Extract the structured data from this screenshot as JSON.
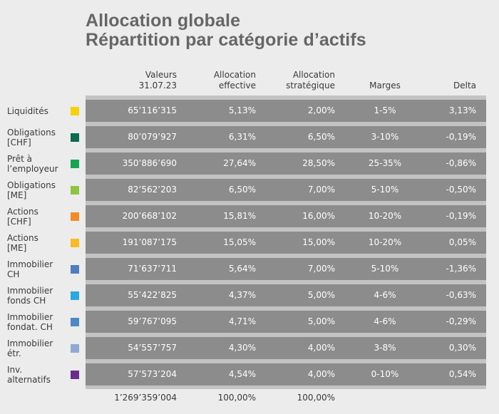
{
  "title": {
    "line1": "Allocation globale",
    "line2": "Répartition par catégorie d’actifs"
  },
  "headers": {
    "valeurs": [
      "Valeurs",
      "31.07.23"
    ],
    "effective": [
      "Allocation",
      "effective"
    ],
    "strategique": [
      "Allocation",
      "stratégique"
    ],
    "marges": "Marges",
    "delta": "Delta"
  },
  "rows": [
    {
      "label": [
        "Liquidités"
      ],
      "color": "#f5d20a",
      "valeur": "65’116’315",
      "effective": "5,13%",
      "strategique": "2,00%",
      "marges": "1-5%",
      "delta": "3,13%"
    },
    {
      "label": [
        "Obligations",
        "[CHF]"
      ],
      "color": "#0d6b4f",
      "valeur": "80’079’927",
      "effective": "6,31%",
      "strategique": "6,50%",
      "marges": "3-10%",
      "delta": "-0,19%"
    },
    {
      "label": [
        "Prêt à",
        "l’employeur"
      ],
      "color": "#14a550",
      "valeur": "350’886’690",
      "effective": "27,64%",
      "strategique": "28,50%",
      "marges": "25-35%",
      "delta": "-0,86%"
    },
    {
      "label": [
        "Obligations",
        "[ME]"
      ],
      "color": "#8cc63f",
      "valeur": "82’562’203",
      "effective": "6,50%",
      "strategique": "7,00%",
      "marges": "5-10%",
      "delta": "-0,50%"
    },
    {
      "label": [
        "Actions",
        "[CHF]"
      ],
      "color": "#f28c28",
      "valeur": "200’668’102",
      "effective": "15,81%",
      "strategique": "16,00%",
      "marges": "10-20%",
      "delta": "-0,19%"
    },
    {
      "label": [
        "Actions",
        "[ME]"
      ],
      "color": "#fbb924",
      "valeur": "191’087’175",
      "effective": "15,05%",
      "strategique": "15,00%",
      "marges": "10-20%",
      "delta": "0,05%"
    },
    {
      "label": [
        "Immobilier",
        "CH"
      ],
      "color": "#4f7dbf",
      "valeur": "71’637’711",
      "effective": "5,64%",
      "strategique": "7,00%",
      "marges": "5-10%",
      "delta": "-1,36%"
    },
    {
      "label": [
        "Immobilier",
        "fonds CH"
      ],
      "color": "#29a9e0",
      "valeur": "55’422’825",
      "effective": "4,37%",
      "strategique": "5,00%",
      "marges": "4-6%",
      "delta": "-0,63%"
    },
    {
      "label": [
        "Immobilier",
        "fondat. CH"
      ],
      "color": "#4a8ac6",
      "valeur": "59’767’095",
      "effective": "4,71%",
      "strategique": "5,00%",
      "marges": "4-6%",
      "delta": "-0,29%"
    },
    {
      "label": [
        "Immobilier",
        "étr."
      ],
      "color": "#8fa9d4",
      "valeur": "54’557’757",
      "effective": "4,30%",
      "strategique": "4,00%",
      "marges": "3-8%",
      "delta": "0,30%"
    },
    {
      "label": [
        "Inv.",
        "alternatifs"
      ],
      "color": "#6a2c91",
      "valeur": "57’573’204",
      "effective": "4,54%",
      "strategique": "4,00%",
      "marges": "0-10%",
      "delta": "0,54%"
    }
  ],
  "totals": {
    "valeur": "1’269’359’004",
    "effective": "100,00%",
    "strategique": "100,00%"
  }
}
